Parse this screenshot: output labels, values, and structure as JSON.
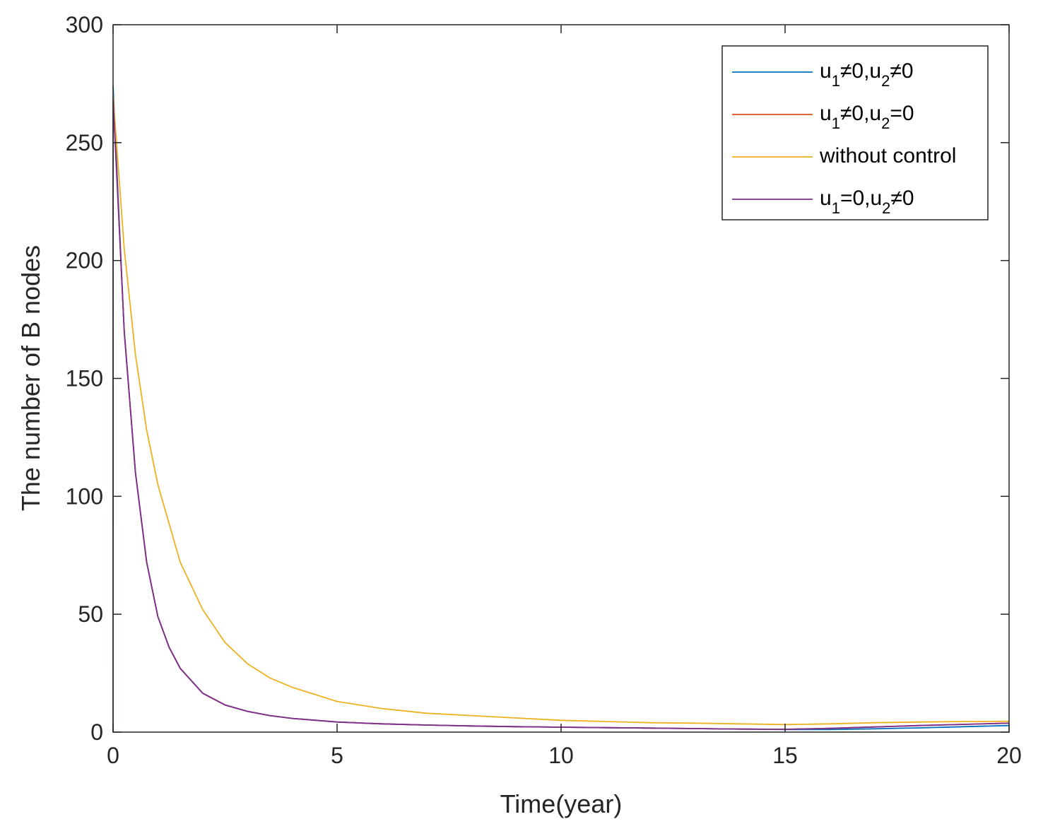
{
  "chart_data": {
    "type": "line",
    "title": "",
    "xlabel": "Time(year)",
    "ylabel": "The number of B nodes",
    "xlim": [
      0,
      20
    ],
    "ylim": [
      0,
      300
    ],
    "xticks": [
      0,
      5,
      10,
      15,
      20
    ],
    "yticks": [
      0,
      50,
      100,
      150,
      200,
      250,
      300
    ],
    "grid": false,
    "legend_position": "top-right",
    "series": [
      {
        "name": "u1≠0,u2≠0",
        "legend": {
          "base": "u",
          "sub1": "1",
          "mid": "≠0,u",
          "sub2": "2",
          "tail": "≠0"
        },
        "color": "#0072BD",
        "x": [
          0,
          0.25,
          0.5,
          0.75,
          1,
          1.25,
          1.5,
          2,
          2.5,
          3,
          3.5,
          4,
          5,
          6,
          7,
          8,
          9,
          10,
          11,
          12,
          13,
          14,
          15,
          16,
          17,
          18,
          19,
          20
        ],
        "y": [
          274,
          170,
          110,
          72,
          49,
          36,
          27,
          16.5,
          11.5,
          8.8,
          7,
          5.8,
          4.3,
          3.5,
          3,
          2.6,
          2.3,
          2.1,
          1.9,
          1.7,
          1.5,
          1.3,
          1.1,
          1.1,
          1.4,
          1.8,
          2.3,
          2.8
        ]
      },
      {
        "name": "u1≠0,u2=0",
        "legend": {
          "base": "u",
          "sub1": "1",
          "mid": "≠0,u",
          "sub2": "2",
          "tail": "=0"
        },
        "color": "#D95319",
        "x": [
          0,
          0.25,
          0.5,
          0.75,
          1,
          1.25,
          1.5,
          2,
          2.5,
          3,
          3.5,
          4,
          5,
          6,
          7,
          8,
          9,
          10,
          11,
          12,
          13,
          14,
          15,
          16,
          17,
          18,
          19,
          20
        ],
        "y": [
          270,
          170,
          110,
          72,
          49,
          36,
          27,
          16.5,
          11.5,
          8.8,
          7,
          5.8,
          4.3,
          3.5,
          3,
          2.6,
          2.3,
          2.1,
          1.9,
          1.7,
          1.5,
          1.3,
          1.2,
          1.6,
          2.2,
          2.8,
          3.3,
          3.8
        ]
      },
      {
        "name": "without control",
        "legend": {
          "text": "without control"
        },
        "color": "#EDB120",
        "x": [
          0,
          0.25,
          0.5,
          0.75,
          1,
          1.5,
          2,
          2.5,
          3,
          3.5,
          4,
          5,
          6,
          7,
          8,
          9,
          10,
          11,
          12,
          13,
          14,
          15,
          16,
          17,
          18,
          19,
          20
        ],
        "y": [
          270,
          205,
          160,
          128,
          105,
          72,
          52,
          38,
          29,
          23,
          19,
          13,
          10,
          8,
          7,
          6,
          5,
          4.5,
          4,
          3.8,
          3.5,
          3.2,
          3.5,
          4,
          4.3,
          4.5,
          4.6
        ]
      },
      {
        "name": "u1=0,u2≠0",
        "legend": {
          "base": "u",
          "sub1": "1",
          "mid": "=0,u",
          "sub2": "2",
          "tail": "≠0"
        },
        "color": "#7E2F8E",
        "x": [
          0,
          0.002,
          0.25,
          0.5,
          0.75,
          1,
          1.25,
          1.5,
          2,
          2.5,
          3,
          3.5,
          4,
          5,
          6,
          7,
          8,
          9,
          10,
          11,
          12,
          13,
          14,
          15,
          16,
          17,
          18,
          19,
          20
        ],
        "y": [
          0,
          268,
          170,
          110,
          72,
          49,
          36,
          27,
          16.5,
          11.5,
          8.8,
          7,
          5.8,
          4.3,
          3.5,
          3,
          2.6,
          2.3,
          2.1,
          1.9,
          1.7,
          1.5,
          1.3,
          1.2,
          1.6,
          2.2,
          2.8,
          3.3,
          3.8
        ]
      }
    ]
  }
}
